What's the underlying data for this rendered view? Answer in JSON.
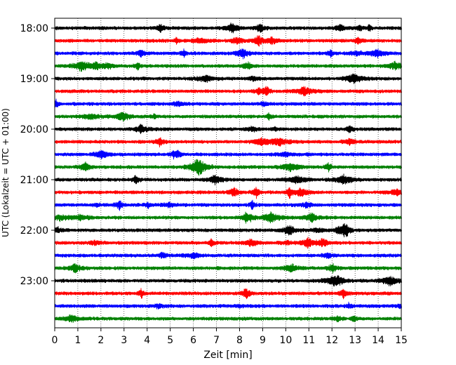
{
  "chart_data": {
    "type": "line",
    "subtype": "helicorder",
    "xlabel": "Zeit  [min]",
    "ylabel": "UTC (Lokalzeit = UTC + 01:00)",
    "xlim": [
      0,
      15
    ],
    "x_ticks": [
      "0",
      "1",
      "2",
      "3",
      "4",
      "5",
      "6",
      "7",
      "8",
      "9",
      "10",
      "11",
      "12",
      "13",
      "14",
      "15"
    ],
    "y_ticks": [
      "18:00",
      "19:00",
      "20:00",
      "21:00",
      "22:00",
      "23:00"
    ],
    "trace_minutes_per_line": 15,
    "trace_colors": [
      "#000000",
      "#ff0000",
      "#0000ff",
      "#008000"
    ],
    "rows": [
      {
        "start": "18:00",
        "color": "#000000"
      },
      {
        "start": "18:15",
        "color": "#ff0000"
      },
      {
        "start": "18:30",
        "color": "#0000ff"
      },
      {
        "start": "18:45",
        "color": "#008000"
      },
      {
        "start": "19:00",
        "color": "#000000"
      },
      {
        "start": "19:15",
        "color": "#ff0000"
      },
      {
        "start": "19:30",
        "color": "#0000ff"
      },
      {
        "start": "19:45",
        "color": "#008000"
      },
      {
        "start": "20:00",
        "color": "#000000"
      },
      {
        "start": "20:15",
        "color": "#ff0000"
      },
      {
        "start": "20:30",
        "color": "#0000ff"
      },
      {
        "start": "20:45",
        "color": "#008000"
      },
      {
        "start": "21:00",
        "color": "#000000"
      },
      {
        "start": "21:15",
        "color": "#ff0000"
      },
      {
        "start": "21:30",
        "color": "#0000ff"
      },
      {
        "start": "21:45",
        "color": "#008000"
      },
      {
        "start": "22:00",
        "color": "#000000"
      },
      {
        "start": "22:15",
        "color": "#ff0000"
      },
      {
        "start": "22:30",
        "color": "#0000ff"
      },
      {
        "start": "22:45",
        "color": "#008000"
      },
      {
        "start": "23:00",
        "color": "#000000"
      },
      {
        "start": "23:15",
        "color": "#ff0000"
      },
      {
        "start": "23:30",
        "color": "#0000ff"
      },
      {
        "start": "23:45",
        "color": "#008000"
      }
    ],
    "grid": "vertical dotted at each minute"
  }
}
